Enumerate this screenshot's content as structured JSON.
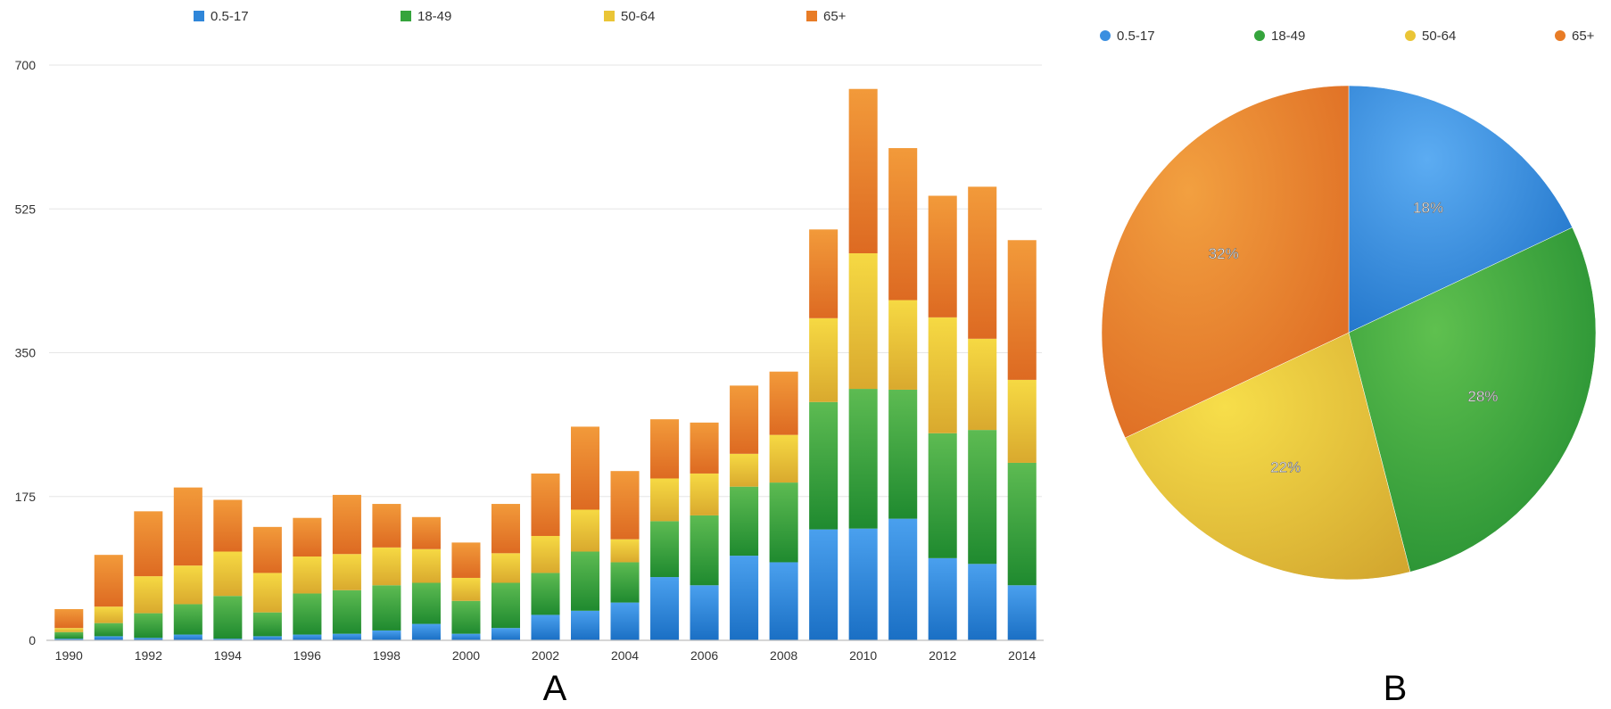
{
  "chart_data": [
    {
      "panel_label": "A",
      "type": "bar",
      "stacked": true,
      "title": "",
      "xlabel": "",
      "ylabel": "",
      "ylim": [
        0,
        700
      ],
      "yticks": [
        0,
        175,
        350,
        525,
        700
      ],
      "legend_position": "top",
      "categories": [
        "1990",
        "1991",
        "1992",
        "1993",
        "1994",
        "1995",
        "1996",
        "1997",
        "1998",
        "1999",
        "2000",
        "2001",
        "2002",
        "2003",
        "2004",
        "2005",
        "2006",
        "2007",
        "2008",
        "2009",
        "2010",
        "2011",
        "2012",
        "2013",
        "2014"
      ],
      "xticks": [
        "1990",
        "1992",
        "1994",
        "1996",
        "1998",
        "2000",
        "2002",
        "2004",
        "2006",
        "2008",
        "2010",
        "2012",
        "2014"
      ],
      "series": [
        {
          "name": "0.5-17",
          "color": "#2f86d9",
          "values": [
            2,
            5,
            3,
            7,
            2,
            5,
            7,
            8,
            12,
            20,
            8,
            15,
            31,
            36,
            46,
            77,
            67,
            103,
            95,
            135,
            136,
            148,
            100,
            93,
            67
          ]
        },
        {
          "name": "18-49",
          "color": "#35a43c",
          "values": [
            8,
            16,
            30,
            37,
            52,
            29,
            50,
            53,
            55,
            50,
            40,
            55,
            51,
            72,
            49,
            68,
            85,
            84,
            97,
            155,
            170,
            157,
            152,
            163,
            149
          ]
        },
        {
          "name": "50-64",
          "color": "#eac536",
          "values": [
            5,
            20,
            45,
            47,
            54,
            48,
            45,
            44,
            46,
            41,
            28,
            36,
            45,
            51,
            28,
            52,
            51,
            40,
            58,
            102,
            165,
            109,
            141,
            111,
            101
          ]
        },
        {
          "name": "65+",
          "color": "#e87c26",
          "values": [
            23,
            63,
            79,
            95,
            63,
            56,
            47,
            72,
            53,
            39,
            43,
            60,
            76,
            101,
            83,
            72,
            62,
            83,
            77,
            108,
            200,
            185,
            148,
            185,
            170
          ]
        }
      ]
    },
    {
      "panel_label": "B",
      "type": "pie",
      "title": "",
      "legend_position": "top",
      "labels": [
        "0.5-17",
        "18-49",
        "50-64",
        "65+"
      ],
      "values": [
        18,
        28,
        22,
        32
      ],
      "value_labels": [
        "18%",
        "28%",
        "22%",
        "32%"
      ],
      "colors": [
        "#3b8fe0",
        "#35a43c",
        "#eac536",
        "#e87c26"
      ]
    }
  ]
}
